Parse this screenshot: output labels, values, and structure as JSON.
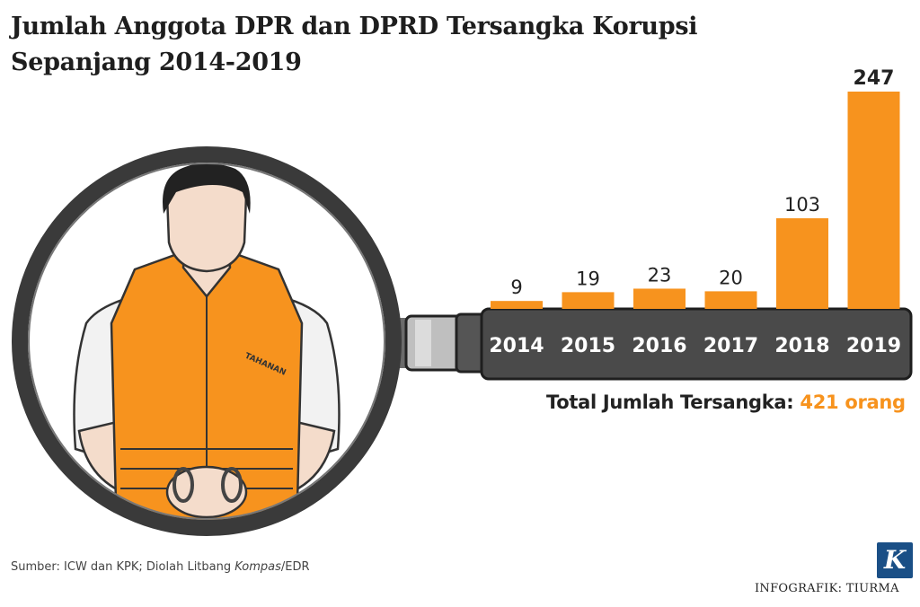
{
  "title": "Jumlah Anggota DPR dan DPRD Tersangka Korupsi Sepanjang 2014-2019",
  "total": {
    "label": "Total Jumlah Tersangka:",
    "value": "421 orang"
  },
  "source": {
    "prefix": "Sumber: ICW dan KPK; Diolah Litbang ",
    "italic": "Kompas",
    "suffix": "/EDR"
  },
  "credit": "INFOGRAFIK: TIURMA",
  "logo_letter": "K",
  "vest_label": "TAHANAN",
  "colors": {
    "bar": "#f7931e",
    "handle": "#4a4a4a",
    "text": "#222222",
    "accent": "#f7931e",
    "logo": "#1a4f86"
  },
  "chart_data": {
    "type": "bar",
    "categories": [
      "2014",
      "2015",
      "2016",
      "2017",
      "2018",
      "2019"
    ],
    "values": [
      9,
      19,
      23,
      20,
      103,
      247
    ],
    "title": "Jumlah Anggota DPR dan DPRD Tersangka Korupsi Sepanjang 2014-2019",
    "xlabel": "",
    "ylabel": "",
    "ylim": [
      0,
      247
    ],
    "grid": false,
    "legend": "none",
    "data_labels": true
  }
}
